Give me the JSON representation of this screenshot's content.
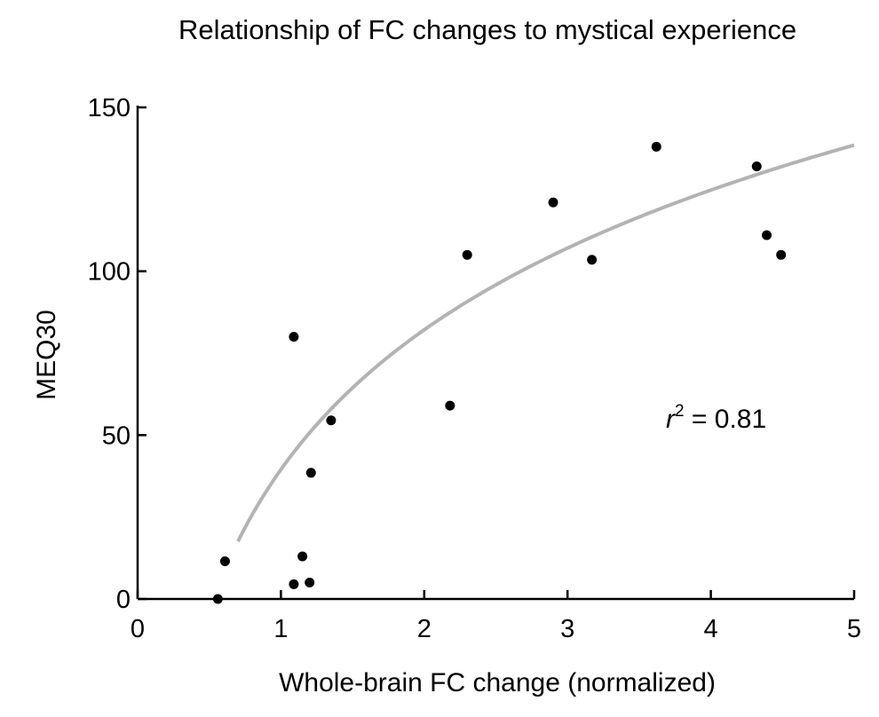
{
  "chart_data": {
    "type": "scatter",
    "title": "Relationship of FC changes to mystical experience",
    "xlabel": "Whole-brain FC change (normalized)",
    "ylabel": "MEQ30",
    "xlim": [
      0,
      5
    ],
    "ylim": [
      0,
      150
    ],
    "x_ticks": [
      "0",
      "1",
      "2",
      "3",
      "4",
      "5"
    ],
    "y_ticks": [
      "0",
      "50",
      "100",
      "150"
    ],
    "grid": false,
    "points": [
      {
        "x": 0.56,
        "y": 0
      },
      {
        "x": 0.61,
        "y": 11.5
      },
      {
        "x": 1.09,
        "y": 4.5
      },
      {
        "x": 1.15,
        "y": 13
      },
      {
        "x": 1.2,
        "y": 5
      },
      {
        "x": 1.21,
        "y": 38.5
      },
      {
        "x": 1.09,
        "y": 80
      },
      {
        "x": 1.35,
        "y": 54.5
      },
      {
        "x": 2.18,
        "y": 59
      },
      {
        "x": 2.3,
        "y": 105
      },
      {
        "x": 2.9,
        "y": 121
      },
      {
        "x": 3.17,
        "y": 103.5
      },
      {
        "x": 3.62,
        "y": 138
      },
      {
        "x": 4.32,
        "y": 132
      },
      {
        "x": 4.39,
        "y": 111
      },
      {
        "x": 4.49,
        "y": 105
      }
    ],
    "fit": {
      "model": "log",
      "equation_note": "y = a + b*ln(x)",
      "a": 39.5,
      "b": 61.5,
      "x_range": [
        0.7,
        5.0
      ],
      "color": "#b3b3b3"
    },
    "annotation": {
      "r_symbol": "r",
      "superscript": "2",
      "rest": " = 0.81"
    },
    "marker_color": "#000000"
  }
}
